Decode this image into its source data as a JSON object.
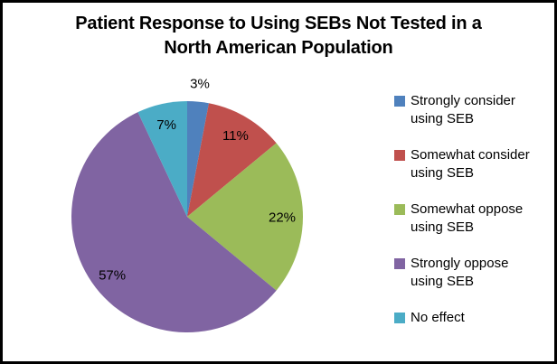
{
  "frame": {
    "border_color": "#000000",
    "background_color": "#FFFFFF"
  },
  "chart_data": {
    "type": "pie",
    "title": "Patient Response to Using SEBs Not Tested in a North American Population",
    "title_lines": [
      "Patient Response to Using SEBs Not Tested in a",
      "North American Population"
    ],
    "legend_position": "right",
    "data_labels": "percent",
    "slices": [
      {
        "label": "Strongly consider using SEB",
        "legend_lines": [
          "Strongly consider",
          "using SEB"
        ],
        "value": 3,
        "pct_label": "3%",
        "color": "#4F81BD",
        "label_outside": true
      },
      {
        "label": "Somewhat consider using SEB",
        "legend_lines": [
          "Somewhat consider",
          "using SEB"
        ],
        "value": 11,
        "pct_label": "11%",
        "color": "#C0504D",
        "label_outside": false
      },
      {
        "label": "Somewhat oppose using SEB",
        "legend_lines": [
          "Somewhat oppose",
          "using SEB"
        ],
        "value": 22,
        "pct_label": "22%",
        "color": "#9BBB59",
        "label_outside": false
      },
      {
        "label": "Strongly oppose using SEB",
        "legend_lines": [
          "Strongly oppose",
          "using SEB"
        ],
        "value": 57,
        "pct_label": "57%",
        "color": "#8064A2",
        "label_outside": false
      },
      {
        "label": "No effect",
        "legend_lines": [
          "No effect"
        ],
        "value": 7,
        "pct_label": "7%",
        "color": "#4BACC6",
        "label_outside": false
      }
    ]
  }
}
